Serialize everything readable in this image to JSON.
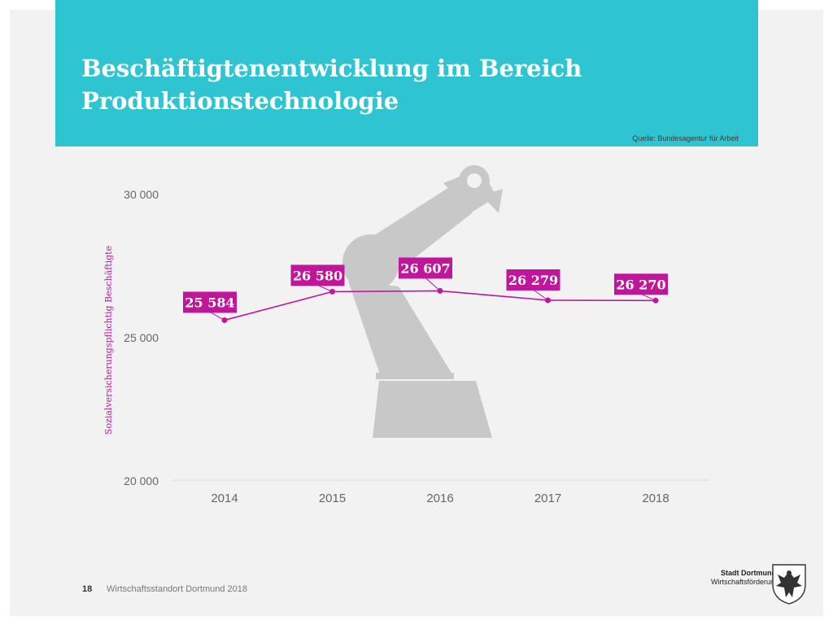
{
  "header": {
    "title_line1": "Beschäftigtenentwicklung im Bereich",
    "title_line2": "Produktionstechnologie",
    "source": "Quelle: Bundesagentur für Arbeit"
  },
  "footer": {
    "page_number": "18",
    "text": "Wirtschaftsstandort Dortmund 2018",
    "logo_line1": "Stadt Dortmund",
    "logo_line2": "Wirtschaftsförderung"
  },
  "colors": {
    "accent": "#c0169c",
    "header": "#2ec4d1",
    "robot": "#c8c8c8"
  },
  "chart_data": {
    "type": "line",
    "categories": [
      "2014",
      "2015",
      "2016",
      "2017",
      "2018"
    ],
    "series": [
      {
        "values": [
          25584,
          26580,
          26607,
          26279,
          26270
        ],
        "labels": [
          "25 584",
          "26 580",
          "26 607",
          "26 279",
          "26 270"
        ]
      }
    ],
    "ylabel": "Sozialversicherungspflichtig Beschäftigte",
    "ylim": [
      20000,
      30000
    ],
    "yticks": [
      {
        "value": 20000,
        "label": "20 000"
      },
      {
        "value": 25000,
        "label": "25 000"
      },
      {
        "value": 30000,
        "label": "30 000"
      }
    ],
    "grid": false
  }
}
